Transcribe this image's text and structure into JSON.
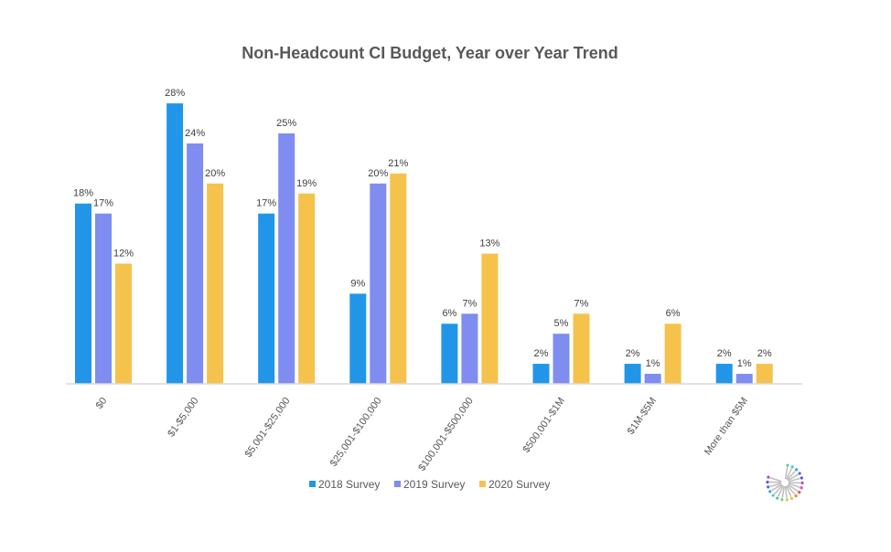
{
  "chart_data": {
    "type": "bar",
    "title": "Non-Headcount CI Budget, Year over Year Trend",
    "xlabel": "",
    "ylabel": "",
    "ylim": [
      0,
      30
    ],
    "grid": false,
    "legend_position": "bottom",
    "categories": [
      "$0",
      "$1-$5,000",
      "$5,001-$25,000",
      "$25,001-$100,000",
      "$100,001-$500,000",
      "$500,001-$1M",
      "$1M-$5M",
      "More than $5M"
    ],
    "series": [
      {
        "name": "2018 Survey",
        "color": "#2196e8",
        "values": [
          18,
          28,
          17,
          9,
          6,
          2,
          2,
          2
        ]
      },
      {
        "name": "2019 Survey",
        "color": "#7f8cf0",
        "values": [
          17,
          24,
          25,
          20,
          7,
          5,
          1,
          1
        ]
      },
      {
        "name": "2020 Survey",
        "color": "#f5c24c",
        "values": [
          12,
          20,
          19,
          21,
          13,
          7,
          6,
          2
        ]
      }
    ],
    "value_suffix": "%"
  }
}
